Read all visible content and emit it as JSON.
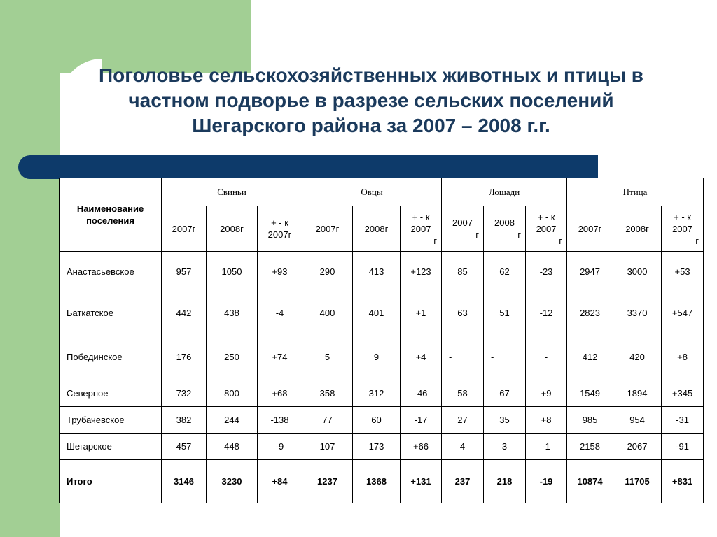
{
  "slide": {
    "title": "Поголовье сельскохозяйственных животных и птицы в частном подворье в разрезе сельских поселений Шегарского района за 2007 – 2008 г.г.",
    "colors": {
      "green": "#a2cf94",
      "navy_bar": "#0d3a6a",
      "title": "#1b3a5c"
    }
  },
  "table": {
    "name_header": "Наименование поселения",
    "groups": [
      "Свиньи",
      "Овцы",
      "Лошади",
      "Птица"
    ],
    "sub": {
      "y2007": "2007г",
      "y2008": "2008г",
      "pm_line1": "+ -   к",
      "pm_line2": "2007г",
      "pm_alt_line2": "2007",
      "pm_alt_line3": "г",
      "yr_alt_2007": "2007",
      "yr_alt_2008": "2008",
      "yr_alt_g": "г"
    },
    "rows": [
      {
        "name": "Анастасьевское",
        "v": [
          "957",
          "1050",
          "+93",
          "290",
          "413",
          "+123",
          "85",
          "62",
          "-23",
          "2947",
          "3000",
          "+53"
        ]
      },
      {
        "name": "Баткатское",
        "v": [
          "442",
          "438",
          "-4",
          "400",
          "401",
          "+1",
          "63",
          "51",
          "-12",
          "2823",
          "3370",
          "+547"
        ]
      },
      {
        "name": "Побединское",
        "v": [
          "176",
          "250",
          "+74",
          "5",
          "9",
          "+4",
          "-",
          "-",
          "-",
          "412",
          "420",
          "+8"
        ]
      },
      {
        "name": "Северное",
        "v": [
          "732",
          "800",
          "+68",
          "358",
          "312",
          "-46",
          "58",
          "67",
          "+9",
          "1549",
          "1894",
          "+345"
        ]
      },
      {
        "name": "Трубачевское",
        "v": [
          "382",
          "244",
          "-138",
          "77",
          "60",
          "-17",
          "27",
          "35",
          "+8",
          "985",
          "954",
          "-31"
        ]
      },
      {
        "name": "Шегарское",
        "v": [
          "457",
          "448",
          "-9",
          "107",
          "173",
          "+66",
          "4",
          "3",
          "-1",
          "2158",
          "2067",
          "-91"
        ]
      }
    ],
    "total": {
      "name": "Итого",
      "v": [
        "3146",
        "3230",
        "+84",
        "1237",
        "1368",
        "+131",
        "237",
        "218",
        "-19",
        "10874",
        "11705",
        "+831"
      ]
    }
  }
}
